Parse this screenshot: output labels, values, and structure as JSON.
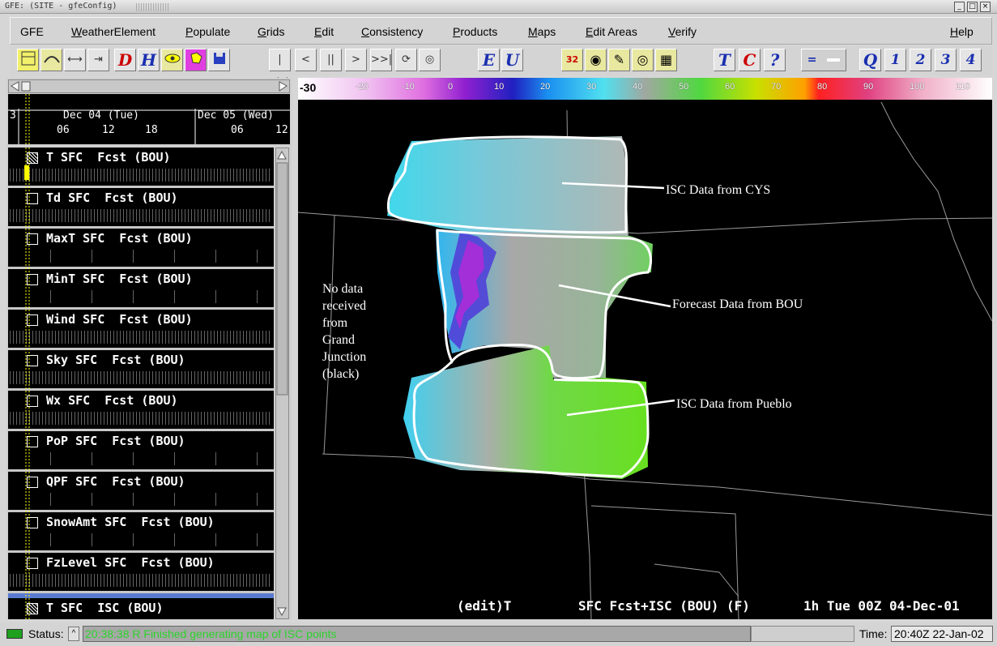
{
  "window": {
    "title": "GFE: (SITE - gfeConfig)"
  },
  "menu": {
    "gfe": "GFE",
    "weather_element": {
      "first": "W",
      "rest": "eatherElement"
    },
    "populate": {
      "first": "P",
      "rest": "opulate"
    },
    "grids": {
      "first": "G",
      "rest": "rids"
    },
    "edit": {
      "first": "E",
      "rest": "dit"
    },
    "consistency": {
      "first": "C",
      "rest": "onsistency"
    },
    "products": {
      "first": "P",
      "rest": "roducts"
    },
    "maps": {
      "first": "M",
      "rest": "aps"
    },
    "edit_areas": {
      "first": "E",
      "rest": "dit Areas"
    },
    "verify": {
      "first": "V",
      "rest": "erify"
    },
    "help": {
      "first": "H",
      "rest": "elp"
    }
  },
  "toolbar": {
    "d_label": "D",
    "h_label": "H",
    "step_back_all": "|<<",
    "step_back": "<",
    "pause": "||",
    "step_fwd": ">",
    "step_fwd_all": ">>|",
    "e_label": "E",
    "u_label": "U",
    "num32": "32",
    "t_label": "T",
    "c_label": "C",
    "help_q": "?",
    "eq_label": "=",
    "q_label": "Q",
    "b1": "1",
    "b2": "2",
    "b3": "3",
    "b4": "4"
  },
  "timeline": {
    "day1": "Dec 04 (Tue)",
    "day2": "Dec 05 (Wed)",
    "lead": "3",
    "hours": [
      "06",
      "12",
      "18",
      "06",
      "12"
    ]
  },
  "grids": [
    {
      "label": "T SFC  Fcst (BOU)"
    },
    {
      "label": "Td SFC  Fcst (BOU)"
    },
    {
      "label": "MaxT SFC  Fcst (BOU)"
    },
    {
      "label": "MinT SFC  Fcst (BOU)"
    },
    {
      "label": "Wind SFC  Fcst (BOU)"
    },
    {
      "label": "Sky SFC  Fcst (BOU)"
    },
    {
      "label": "Wx SFC  Fcst (BOU)"
    },
    {
      "label": "PoP SFC  Fcst (BOU)"
    },
    {
      "label": "QPF SFC  Fcst (BOU)"
    },
    {
      "label": "SnowAmt SFC  Fcst (BOU)"
    },
    {
      "label": "FzLevel SFC  Fcst (BOU)"
    },
    {
      "label": "T SFC  ISC (BOU)"
    }
  ],
  "colorbar": {
    "ticks": [
      "-30",
      "-20",
      "-10",
      "0",
      "10",
      "20",
      "30",
      "40",
      "50",
      "60",
      "70",
      "80",
      "90",
      "100",
      "110"
    ]
  },
  "map": {
    "ann_cys": "ISC Data from CYS",
    "ann_bou": "Forecast Data from BOU",
    "ann_pueblo": "ISC Data from Pueblo",
    "nodata": [
      "No data",
      "received",
      "from",
      "Grand",
      "Junction",
      "(black)"
    ],
    "bottom": {
      "edit": "(edit)T",
      "source": "SFC Fcst+ISC (BOU) (F)",
      "time": "1h Tue 00Z 04-Dec-01"
    }
  },
  "status": {
    "label": "Status:",
    "message": "20:38:38 R Finished generating map of ISC points",
    "time_label": "Time:",
    "time_value": "20:40Z 22-Jan-02"
  }
}
